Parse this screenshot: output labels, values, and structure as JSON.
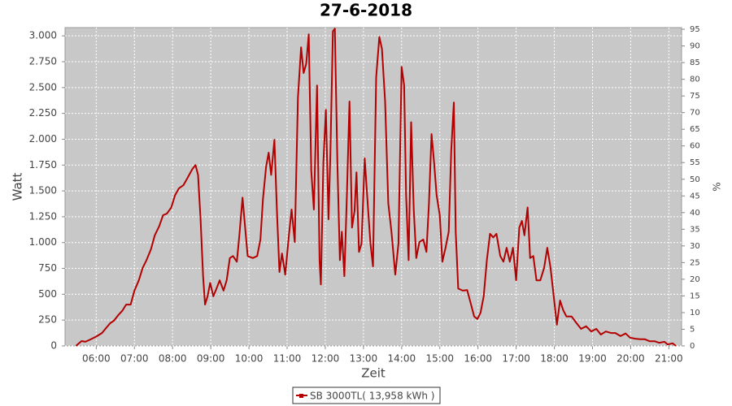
{
  "chart_data": {
    "type": "line",
    "title": "27-6-2018",
    "x_label": "Zeit",
    "y_label": "Watt",
    "y2_label": "%",
    "x": [
      "05:28",
      "05:37",
      "05:43",
      "05:50",
      "06:00",
      "06:09",
      "06:15",
      "06:22",
      "06:28",
      "06:35",
      "06:41",
      "06:47",
      "06:54",
      "07:00",
      "07:07",
      "07:13",
      "07:19",
      "07:26",
      "07:32",
      "07:39",
      "07:45",
      "07:51",
      "07:58",
      "08:04",
      "08:10",
      "08:17",
      "08:23",
      "08:31",
      "08:36",
      "08:40",
      "08:44",
      "08:48",
      "08:51",
      "08:55",
      "08:59",
      "09:04",
      "09:09",
      "09:14",
      "09:20",
      "09:25",
      "09:30",
      "09:35",
      "09:41",
      "09:45",
      "09:50",
      "09:54",
      "09:58",
      "10:06",
      "10:13",
      "10:18",
      "10:22",
      "10:27",
      "10:31",
      "10:35",
      "10:40",
      "10:44",
      "10:48",
      "10:52",
      "10:57",
      "11:03",
      "11:07",
      "11:12",
      "11:17",
      "11:22",
      "11:26",
      "11:30",
      "11:34",
      "11:38",
      "11:42",
      "11:47",
      "11:51",
      "11:53",
      "11:57",
      "12:01",
      "12:05",
      "12:08",
      "12:12",
      "12:15",
      "12:19",
      "12:23",
      "12:26",
      "12:30",
      "12:34",
      "12:38",
      "12:42",
      "12:46",
      "12:49",
      "12:53",
      "12:57",
      "13:02",
      "13:07",
      "13:11",
      "13:15",
      "13:20",
      "13:25",
      "13:29",
      "13:34",
      "13:39",
      "13:44",
      "13:50",
      "13:55",
      "14:00",
      "14:04",
      "14:07",
      "14:11",
      "14:15",
      "14:19",
      "14:23",
      "14:28",
      "14:34",
      "14:39",
      "14:43",
      "14:47",
      "14:51",
      "14:55",
      "15:00",
      "15:04",
      "15:09",
      "15:14",
      "15:18",
      "15:22",
      "15:25",
      "15:29",
      "15:36",
      "15:43",
      "15:48",
      "15:54",
      "15:59",
      "16:04",
      "16:09",
      "16:14",
      "16:19",
      "16:24",
      "16:29",
      "16:35",
      "16:40",
      "16:45",
      "16:50",
      "16:55",
      "17:00",
      "17:05",
      "17:09",
      "17:13",
      "17:18",
      "17:22",
      "17:27",
      "17:32",
      "17:38",
      "17:44",
      "17:49",
      "17:54",
      "17:59",
      "18:04",
      "18:09",
      "18:14",
      "18:19",
      "18:27",
      "18:35",
      "18:42",
      "18:50",
      "18:58",
      "19:06",
      "19:13",
      "19:21",
      "19:29",
      "19:36",
      "19:44",
      "19:52",
      "19:59",
      "20:07",
      "20:15",
      "20:22",
      "20:30",
      "20:38",
      "20:45",
      "20:53",
      "20:58",
      "21:06",
      "21:11"
    ],
    "series": [
      {
        "name": "SB 3000TL( 13,958 kWh )",
        "color": "#b40000",
        "values": [
          0,
          47,
          40,
          60,
          90,
          125,
          170,
          220,
          245,
          300,
          340,
          400,
          400,
          535,
          635,
          755,
          830,
          935,
          1070,
          1160,
          1265,
          1280,
          1340,
          1460,
          1525,
          1555,
          1620,
          1710,
          1750,
          1655,
          1225,
          675,
          400,
          480,
          610,
          480,
          555,
          635,
          535,
          635,
          850,
          870,
          815,
          1070,
          1435,
          1145,
          870,
          850,
          870,
          1030,
          1420,
          1735,
          1870,
          1655,
          1995,
          1305,
          715,
          895,
          690,
          1085,
          1320,
          1005,
          2400,
          2890,
          2640,
          2730,
          3015,
          1695,
          1320,
          2520,
          830,
          595,
          1775,
          2285,
          1225,
          1855,
          3045,
          3070,
          1775,
          830,
          1105,
          675,
          1460,
          2365,
          1145,
          1305,
          1680,
          910,
          990,
          1815,
          1340,
          990,
          770,
          2600,
          2990,
          2875,
          2365,
          1380,
          1105,
          690,
          990,
          2700,
          2520,
          1460,
          830,
          2165,
          1320,
          850,
          1005,
          1030,
          910,
          1380,
          2050,
          1775,
          1460,
          1265,
          815,
          950,
          1105,
          1890,
          2355,
          1105,
          555,
          535,
          540,
          425,
          285,
          260,
          320,
          480,
          830,
          1085,
          1050,
          1085,
          870,
          815,
          950,
          815,
          950,
          635,
          1145,
          1210,
          1070,
          1340,
          850,
          870,
          635,
          635,
          755,
          950,
          755,
          480,
          205,
          440,
          345,
          285,
          285,
          220,
          165,
          190,
          140,
          165,
          110,
          140,
          125,
          125,
          95,
          120,
          80,
          70,
          65,
          65,
          45,
          45,
          30,
          40,
          15,
          25,
          0
        ]
      }
    ],
    "xlim": [
      "05:11",
      "21:20"
    ],
    "xticks": [
      "06:00",
      "07:00",
      "08:00",
      "09:00",
      "10:00",
      "11:00",
      "12:00",
      "13:00",
      "14:00",
      "15:00",
      "16:00",
      "17:00",
      "18:00",
      "19:00",
      "20:00",
      "21:00"
    ],
    "ylim": [
      0,
      3080
    ],
    "yticks": [
      0,
      250,
      500,
      750,
      {
        "value": 1000,
        "label": "1.000"
      },
      {
        "value": 1250,
        "label": "1.250"
      },
      {
        "value": 1500,
        "label": "1.500"
      },
      {
        "value": 1750,
        "label": "1.750"
      },
      {
        "value": 2000,
        "label": "2.000"
      },
      {
        "value": 2250,
        "label": "2.250"
      },
      {
        "value": 2500,
        "label": "2.500"
      },
      {
        "value": 2750,
        "label": "2.750"
      },
      {
        "value": 3000,
        "label": "3.000"
      }
    ],
    "y2lim": [
      0,
      95.5
    ],
    "y2ticks": [
      0,
      5,
      10,
      15,
      20,
      25,
      30,
      35,
      40,
      45,
      50,
      55,
      60,
      65,
      70,
      75,
      80,
      85,
      90,
      95
    ],
    "grid": true,
    "legend": "bottom"
  }
}
